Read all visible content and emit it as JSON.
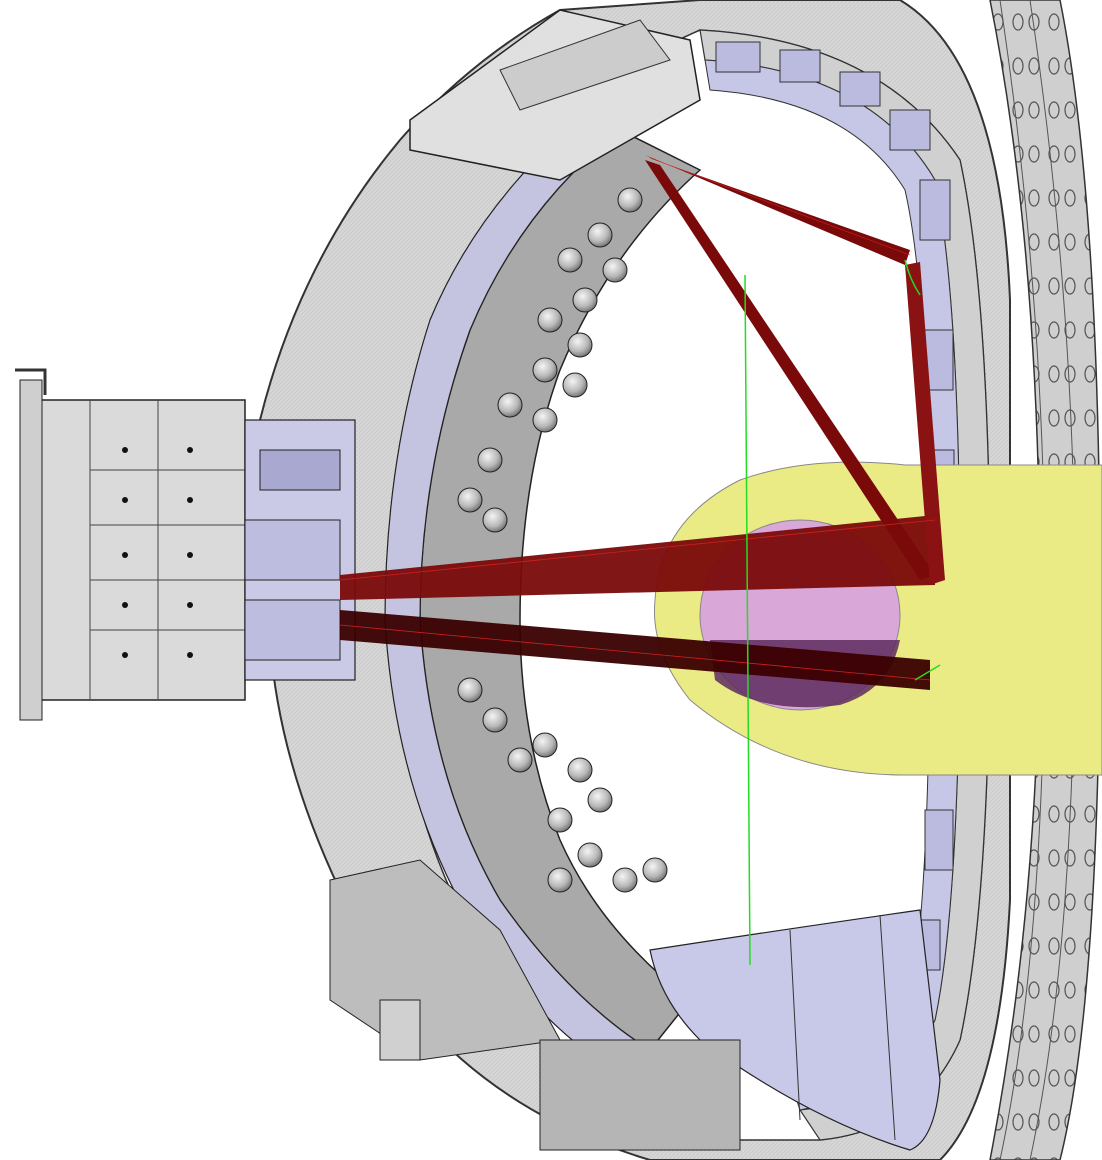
{
  "colors": {
    "background": "#ffffff",
    "metal_light": "#d9d9d9",
    "metal_mid": "#bdbdbd",
    "metal_dark": "#8c8c8c",
    "outline": "#3a3a3a",
    "blanket_lavender": "#bbbbe0",
    "ray_red": "#7a0a0a",
    "ray_dark": "#3a0000",
    "plasma_yellow": "#e8e87a",
    "plasma_pink": "#d8a6d8",
    "plasma_purple": "#5a2a5a",
    "sightline_green": "#22dd22"
  },
  "icons": [
    "tokamak-cross-section",
    "diagnostic-port-plug",
    "sightline-fan"
  ]
}
